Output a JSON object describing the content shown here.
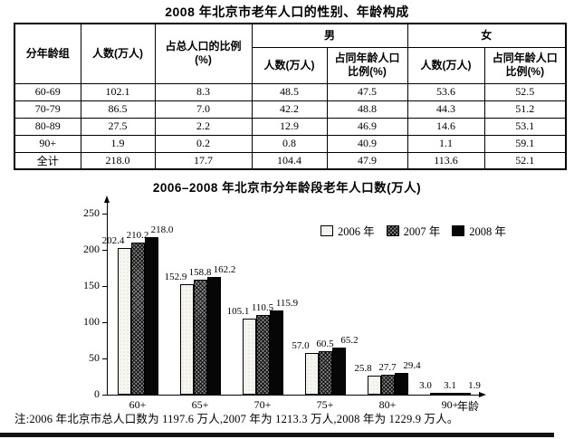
{
  "page": {
    "title": "2008 年北京市老年人口的性别、年龄构成",
    "note": "注:2006 年北京市总人口数为 1197.6 万人,2007 年为 1213.3 万人,2008 年为 1229.9 万人。"
  },
  "table": {
    "header": {
      "age_group": "分年龄组",
      "count": "人数(万人)",
      "pct_total_line1": "占总人口的比例",
      "pct_total_line2": "(%)",
      "male": "男",
      "female": "女",
      "sub_count": "人数(万人)",
      "sub_pct_line1": "占同年龄人口",
      "sub_pct_line2": "比例(%)"
    },
    "rows": [
      [
        "60-69",
        "102.1",
        "8.3",
        "48.5",
        "47.5",
        "53.6",
        "52.5"
      ],
      [
        "70-79",
        "86.5",
        "7.0",
        "42.2",
        "48.8",
        "44.3",
        "51.2"
      ],
      [
        "80-89",
        "27.5",
        "2.2",
        "12.9",
        "46.9",
        "14.6",
        "53.1"
      ],
      [
        "90+",
        "1.9",
        "0.2",
        "0.8",
        "40.9",
        "1.1",
        "59.1"
      ],
      [
        "全计",
        "218.0",
        "17.7",
        "104.4",
        "47.9",
        "113.6",
        "52.1"
      ]
    ]
  },
  "chart_data": {
    "type": "bar",
    "title": "2006–2008 年北京市分年龄段老年人口数(万人)",
    "categories": [
      "60+",
      "65+",
      "70+",
      "75+",
      "80+",
      "90+"
    ],
    "series": [
      {
        "name": "2006 年",
        "fill": "white",
        "values": [
          202.4,
          152.9,
          105.1,
          57.0,
          25.8,
          3.0
        ]
      },
      {
        "name": "2007 年",
        "fill": "hatched",
        "values": [
          210.2,
          158.8,
          110.5,
          60.5,
          27.7,
          3.1
        ]
      },
      {
        "name": "2008 年",
        "fill": "black",
        "values": [
          218.0,
          162.2,
          115.9,
          65.2,
          29.4,
          1.9
        ]
      }
    ],
    "xlabel": "年龄",
    "ylabel": "",
    "ylim": [
      0,
      250
    ],
    "yticks": [
      0,
      50,
      100,
      150,
      200,
      250
    ],
    "grid": false,
    "legend_position": "top-right",
    "value_labels": true,
    "colors": {
      "bar_2006": "#f7f6f1",
      "bar_2007": "#8a8a8a",
      "bar_2008": "#060606",
      "axis": "#000000"
    }
  }
}
